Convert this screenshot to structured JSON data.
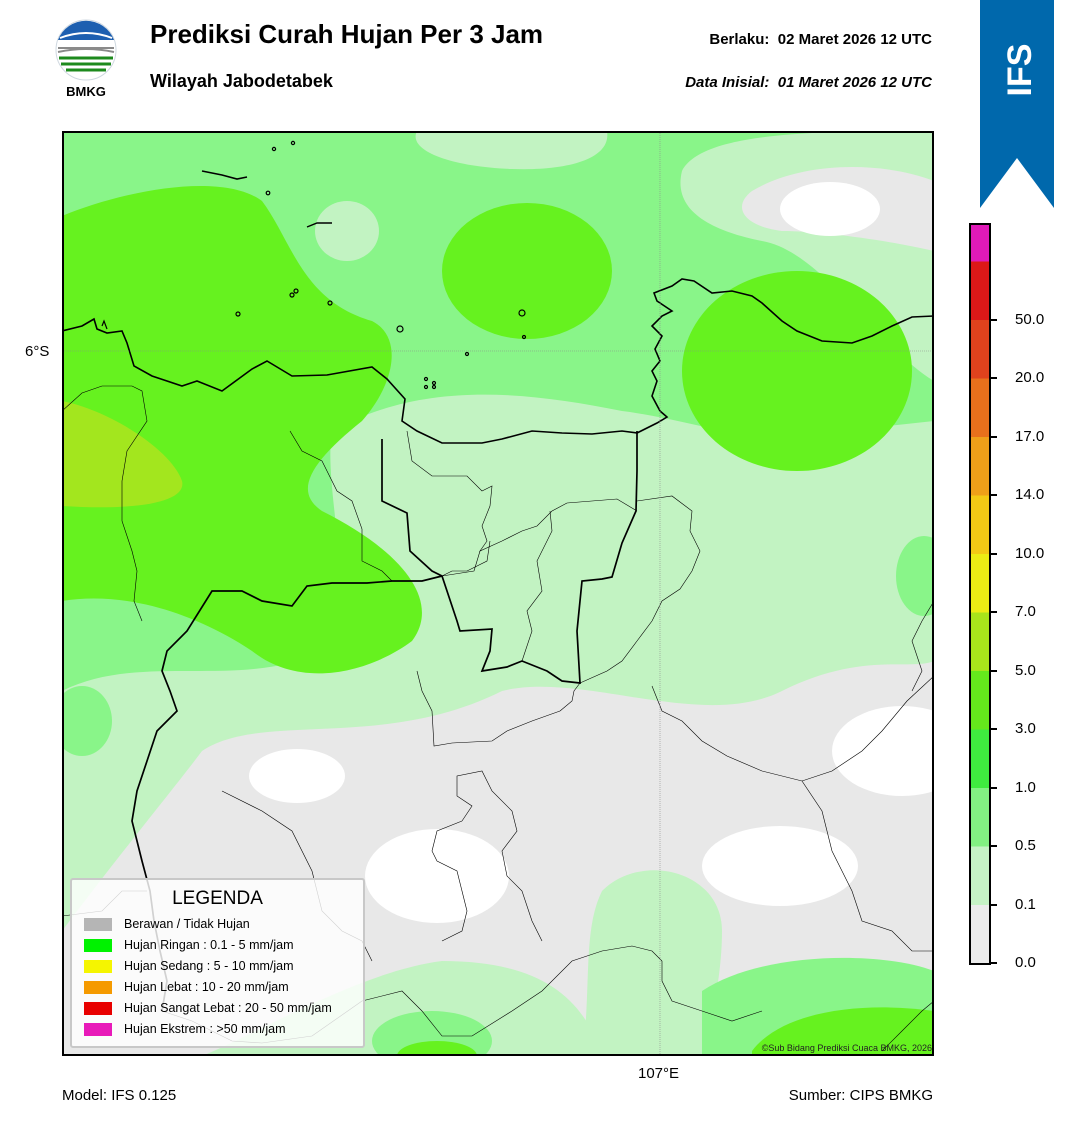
{
  "header": {
    "title": "Prediksi Curah Hujan Per 3 Jam",
    "subtitle": "Wilayah Jabodetabek",
    "valid_label": "Berlaku:",
    "valid_value": "02 Maret 2026 12 UTC",
    "init_label": "Data Inisial:",
    "init_value": "01 Maret 2026 12 UTC"
  },
  "logo": {
    "text": "BMKG",
    "icon": "bmkg-logo-icon"
  },
  "ribbon": {
    "text": "IFS",
    "color": "#0068ac"
  },
  "map": {
    "lat_label": "6°S",
    "lon_label": "107°E",
    "copyright": "©Sub Bidang Prediksi Cuaca BMKG, 2026"
  },
  "legend": {
    "title": "LEGENDA",
    "items": [
      {
        "label": "Berawan / Tidak Hujan",
        "color": "#b5b5b5"
      },
      {
        "label": "Hujan Ringan : 0.1 - 5 mm/jam",
        "color": "#00f200"
      },
      {
        "label": "Hujan Sedang : 5 - 10 mm/jam",
        "color": "#f5f500"
      },
      {
        "label": "Hujan Lebat : 10 - 20 mm/jam",
        "color": "#f59a00"
      },
      {
        "label": "Hujan Sangat Lebat : 20 - 50 mm/jam",
        "color": "#e80000"
      },
      {
        "label": "Hujan Ekstrem : >50 mm/jam",
        "color": "#e81ab9"
      }
    ]
  },
  "colorbar": {
    "ticks": [
      "0.0",
      "0.1",
      "0.5",
      "1.0",
      "3.0",
      "5.0",
      "7.0",
      "10.0",
      "14.0",
      "17.0",
      "20.0",
      "50.0"
    ],
    "colors": [
      "#ebebeb",
      "#c5f2c5",
      "#82f082",
      "#3fea3f",
      "#65e81c",
      "#a8e41b",
      "#ecec14",
      "#f3c915",
      "#ef9f19",
      "#e8701c",
      "#e0421d",
      "#dc1818",
      "#e01ab8"
    ]
  },
  "footer": {
    "model": "Model: IFS 0.125",
    "source": "Sumber: CIPS BMKG"
  }
}
